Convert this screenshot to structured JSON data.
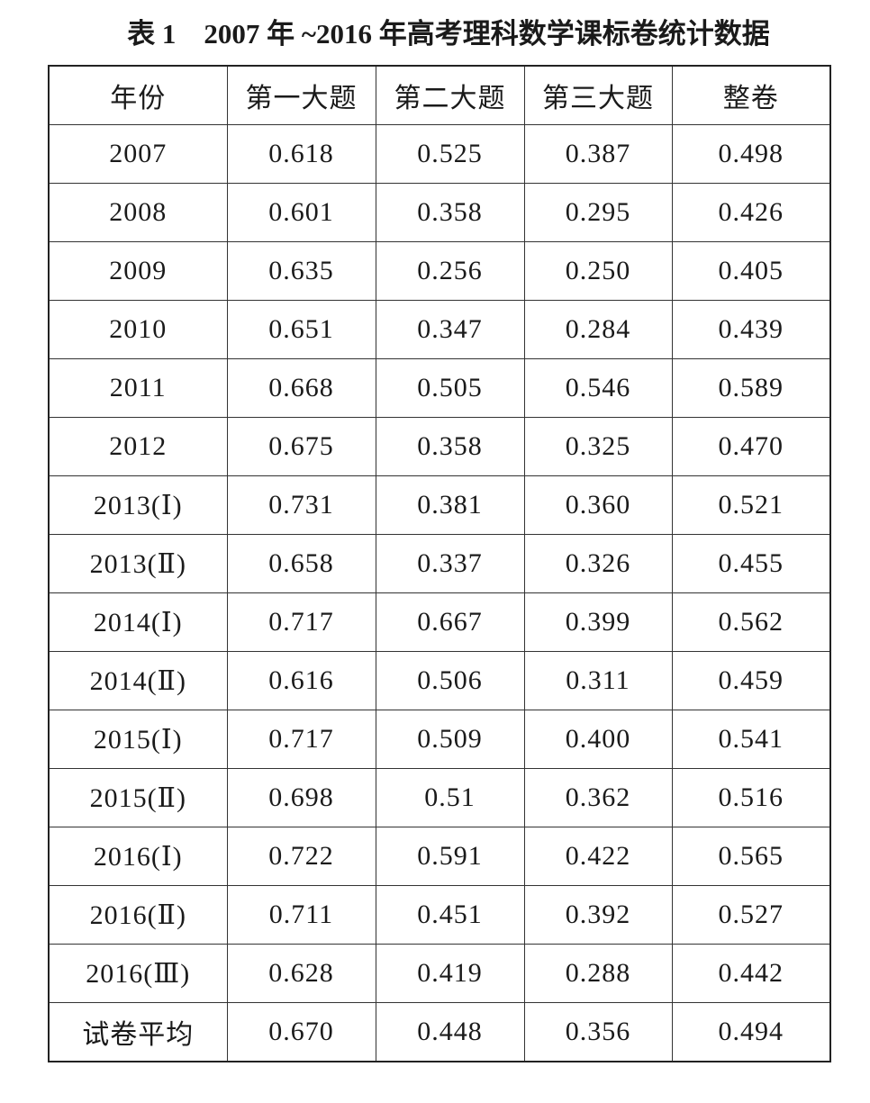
{
  "title": "表 1　2007 年 ~2016 年高考理科数学课标卷统计数据",
  "table": {
    "header": [
      "年份",
      "第一大题",
      "第二大题",
      "第三大题",
      "整卷"
    ],
    "rows": [
      [
        "2007",
        "0.618",
        "0.525",
        "0.387",
        "0.498"
      ],
      [
        "2008",
        "0.601",
        "0.358",
        "0.295",
        "0.426"
      ],
      [
        "2009",
        "0.635",
        "0.256",
        "0.250",
        "0.405"
      ],
      [
        "2010",
        "0.651",
        "0.347",
        "0.284",
        "0.439"
      ],
      [
        "2011",
        "0.668",
        "0.505",
        "0.546",
        "0.589"
      ],
      [
        "2012",
        "0.675",
        "0.358",
        "0.325",
        "0.470"
      ],
      [
        "2013(Ⅰ)",
        "0.731",
        "0.381",
        "0.360",
        "0.521"
      ],
      [
        "2013(Ⅱ)",
        "0.658",
        "0.337",
        "0.326",
        "0.455"
      ],
      [
        "2014(Ⅰ)",
        "0.717",
        "0.667",
        "0.399",
        "0.562"
      ],
      [
        "2014(Ⅱ)",
        "0.616",
        "0.506",
        "0.311",
        "0.459"
      ],
      [
        "2015(Ⅰ)",
        "0.717",
        "0.509",
        "0.400",
        "0.541"
      ],
      [
        "2015(Ⅱ)",
        "0.698",
        "0.51",
        "0.362",
        "0.516"
      ],
      [
        "2016(Ⅰ)",
        "0.722",
        "0.591",
        "0.422",
        "0.565"
      ],
      [
        "2016(Ⅱ)",
        "0.711",
        "0.451",
        "0.392",
        "0.527"
      ],
      [
        "2016(Ⅲ)",
        "0.628",
        "0.419",
        "0.288",
        "0.442"
      ],
      [
        "试卷平均",
        "0.670",
        "0.448",
        "0.356",
        "0.494"
      ]
    ]
  }
}
